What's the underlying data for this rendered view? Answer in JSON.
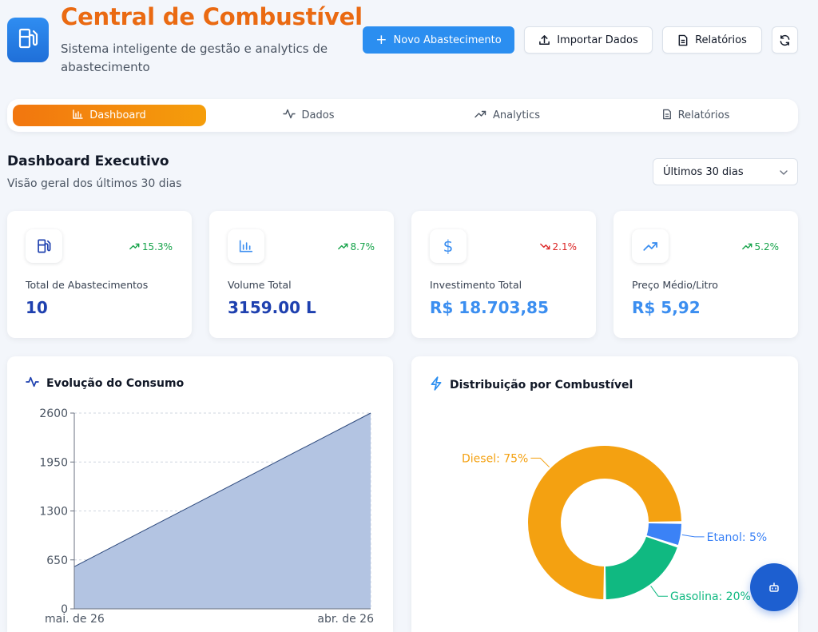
{
  "header": {
    "title": "Central de Combustível",
    "subtitle": "Sistema inteligente de gestão e analytics de abastecimento",
    "logo_icon": "fuel-pump-icon",
    "buttons": {
      "new_refuel": "Novo Abastecimento",
      "import_data": "Importar Dados",
      "reports": "Relatórios",
      "refresh_icon": "refresh-icon"
    }
  },
  "tabs": [
    {
      "label": "Dashboard",
      "icon": "bar-chart-icon",
      "active": true
    },
    {
      "label": "Dados",
      "icon": "activity-icon",
      "active": false
    },
    {
      "label": "Analytics",
      "icon": "trending-up-icon",
      "active": false
    },
    {
      "label": "Relatórios",
      "icon": "file-text-icon",
      "active": false
    }
  ],
  "section": {
    "title": "Dashboard Executivo",
    "subtitle": "Visão geral dos últimos 30 dias",
    "period_select": "Últimos 30 dias"
  },
  "stats": [
    {
      "label": "Total de Abastecimentos",
      "value": "10",
      "trend": "15.3%",
      "direction": "up",
      "icon": "fuel-pump-icon"
    },
    {
      "label": "Volume Total",
      "value": "3159.00 L",
      "trend": "8.7%",
      "direction": "up",
      "icon": "bar-chart-icon"
    },
    {
      "label": "Investimento Total",
      "value": "R$ 18.703,85",
      "trend": "2.1%",
      "direction": "down",
      "icon": "dollar-icon"
    },
    {
      "label": "Preço Médio/Litro",
      "value": "R$ 5,92",
      "trend": "5.2%",
      "direction": "up",
      "icon": "trending-up-icon"
    }
  ],
  "charts": {
    "consumption_title": "Evolução do Consumo",
    "distribution_title": "Distribuição por Combustível"
  },
  "chart_data": [
    {
      "type": "area",
      "title": "Evolução do Consumo",
      "x": [
        "mai. de 26",
        "abr. de 26"
      ],
      "series": [
        {
          "values": [
            560,
            2600
          ]
        }
      ],
      "y_ticks": [
        0,
        650,
        1300,
        1950,
        2600
      ],
      "ylim": [
        0,
        2600
      ],
      "grid": true,
      "colors": {
        "fill": "#b3c4e2",
        "line": "#2e4a7d"
      }
    },
    {
      "type": "pie",
      "title": "Distribuição por Combustível",
      "categories": [
        "Diesel",
        "Etanol",
        "Gasolina"
      ],
      "values": [
        75,
        5,
        20
      ],
      "labels": [
        "Diesel: 75%",
        "Etanol: 5%",
        "Gasolina: 20%"
      ],
      "colors": [
        "#f4a111",
        "#3b82f6",
        "#10b981"
      ]
    }
  ],
  "assistant_icon": "bot-icon"
}
